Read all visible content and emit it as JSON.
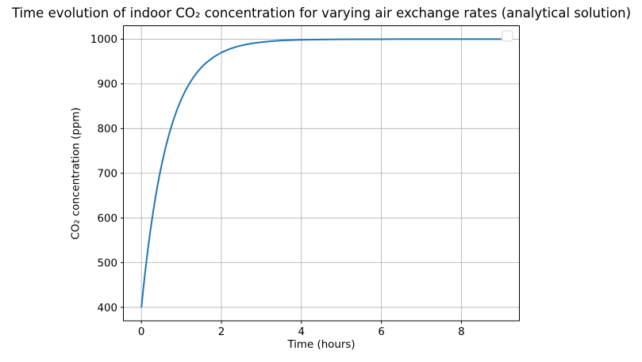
{
  "figure": {
    "background": "#ffffff"
  },
  "chart_data": {
    "type": "line",
    "title": "Time evolution of indoor CO₂ concentration for varying air exchange rates (analytical solution)",
    "xlabel": "Time (hours)",
    "ylabel": "CO₂ concentration (ppm)",
    "xlim": [
      -0.45,
      9.45
    ],
    "ylim": [
      370,
      1030
    ],
    "xticks": [
      0,
      2,
      4,
      6,
      8
    ],
    "yticks": [
      400,
      500,
      600,
      700,
      800,
      900,
      1000
    ],
    "grid": true,
    "grid_color": "#b0b0b0",
    "spine_color": "#000000",
    "legend": {
      "visible": true,
      "position": "upper right",
      "entries": [],
      "edge_color": "#d4d4d4",
      "fill_color": "#ffffff"
    },
    "series": [
      {
        "color": "#1f77b4",
        "line_width": 2,
        "x": [
          0,
          0.05,
          0.1,
          0.15,
          0.2,
          0.25,
          0.3,
          0.35,
          0.4,
          0.45,
          0.5,
          0.6,
          0.7,
          0.8,
          0.9,
          1.0,
          1.1,
          1.2,
          1.3,
          1.4,
          1.5,
          1.6,
          1.8,
          2.0,
          2.2,
          2.4,
          2.6,
          2.8,
          3.0,
          3.25,
          3.5,
          3.75,
          4.0,
          4.5,
          5.0,
          5.5,
          6.0,
          6.5,
          7.0,
          7.5,
          8.0,
          8.5,
          9.0
        ],
        "y": [
          400.0,
          443.4,
          483.6,
          520.9,
          555.5,
          587.6,
          617.4,
          645.1,
          670.7,
          694.5,
          716.6,
          756.1,
          790.0,
          819.3,
          844.5,
          866.1,
          884.8,
          900.8,
          914.6,
          926.5,
          936.8,
          945.6,
          959.7,
          970.1,
          977.9,
          983.6,
          987.9,
          991.0,
          993.3,
          995.4,
          996.9,
          997.8,
          998.5,
          999.3,
          999.7,
          999.8,
          999.9,
          1000.0,
          1000.0,
          1000.0,
          1000.0,
          1000.0,
          1000.0
        ]
      }
    ]
  }
}
